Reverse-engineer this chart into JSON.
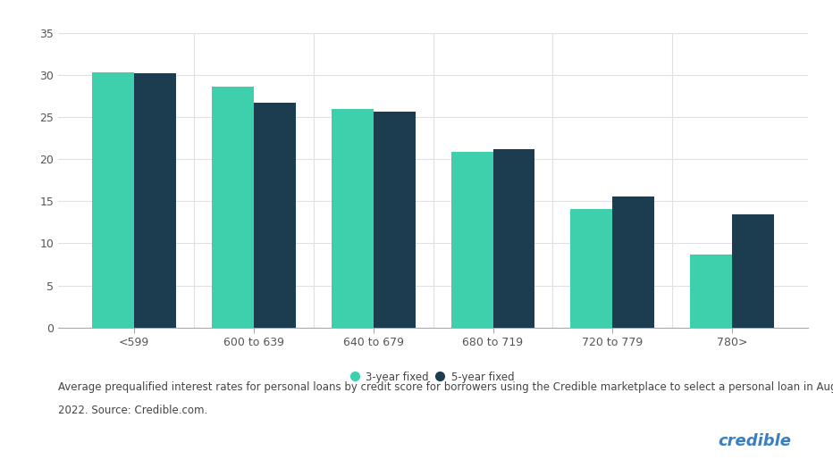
{
  "categories": [
    "<599",
    "600 to 639",
    "640 to 679",
    "680 to 719",
    "720 to 779",
    "780>"
  ],
  "values_3yr": [
    30.3,
    28.6,
    26.0,
    20.9,
    14.1,
    8.7
  ],
  "values_5yr": [
    30.2,
    26.7,
    25.6,
    21.2,
    15.6,
    13.4
  ],
  "color_3yr": "#3ecfad",
  "color_5yr": "#1b3d4f",
  "ylim": [
    0,
    35
  ],
  "yticks": [
    0,
    5,
    10,
    15,
    20,
    25,
    30,
    35
  ],
  "legend_3yr": "3-year fixed",
  "legend_5yr": "5-year fixed",
  "caption_line1": "Average prequalified interest rates for personal loans by credit score for borrowers using the Credible marketplace to select a personal loan in August",
  "caption_line2": "2022. Source: Credible.com.",
  "brand": "credible",
  "brand_color": "#3a7fc1",
  "background_color": "#ffffff",
  "bar_width": 0.35,
  "grid_color": "#e0e0e0",
  "axis_color": "#aaaaaa",
  "tick_label_fontsize": 9,
  "caption_fontsize": 8.5,
  "legend_fontsize": 8.5,
  "brand_fontsize": 13
}
